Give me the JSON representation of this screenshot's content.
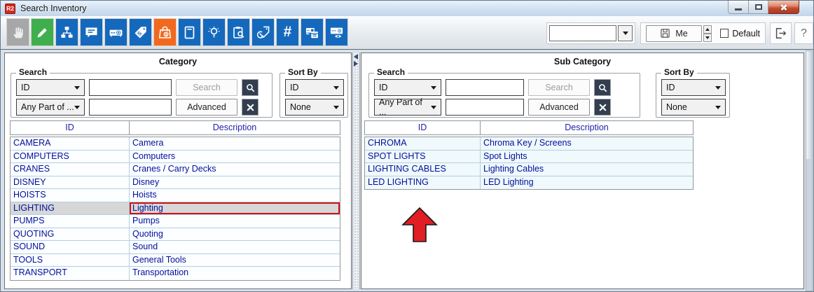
{
  "window": {
    "badge": "R2",
    "title": "Search Inventory",
    "control_icons": [
      "minimize-icon",
      "restore-icon",
      "close-icon"
    ]
  },
  "toolbar": {
    "buttons": [
      {
        "icon": "hand-pointer-icon",
        "state": "disabled",
        "color": "#a7a7a7"
      },
      {
        "icon": "edit-pencil-icon",
        "state": "normal",
        "color": "#3faf4d"
      },
      {
        "icon": "sitemap-icon",
        "state": "normal",
        "color": "#1569bd"
      },
      {
        "icon": "comment-icon",
        "state": "normal",
        "color": "#1569bd"
      },
      {
        "icon": "projector-icon",
        "state": "normal",
        "color": "#1569bd"
      },
      {
        "icon": "price-tag-icon",
        "state": "normal",
        "color": "#1569bd"
      },
      {
        "icon": "shopping-bag-icon",
        "state": "active",
        "color": "#f2691e"
      },
      {
        "icon": "book-icon",
        "state": "normal",
        "color": "#1569bd"
      },
      {
        "icon": "light-bulb-icon",
        "state": "normal",
        "color": "#1569bd"
      },
      {
        "icon": "clipboard-search-icon",
        "state": "normal",
        "color": "#1569bd"
      },
      {
        "icon": "tag-sync-icon",
        "state": "normal",
        "color": "#1569bd"
      },
      {
        "icon": "hash-icon",
        "state": "normal",
        "color": "#1569bd"
      },
      {
        "icon": "projector-calendar-icon",
        "state": "normal",
        "color": "#1569bd"
      },
      {
        "icon": "projector-eye-icon",
        "state": "normal",
        "color": "#1569bd"
      }
    ],
    "hash_glyph": "#"
  },
  "quick_access": {
    "view_dropdown_value": "",
    "save_button_label": "Me",
    "save_icon": "floppy-disk-icon",
    "default_checkbox_label": "Default",
    "default_checked": false,
    "exit_icon": "exit-icon",
    "help_label": "?"
  },
  "panels": [
    {
      "title": "Category",
      "search": {
        "legend": "Search",
        "field_dropdown": "ID",
        "match_dropdown": "Any Part of ...",
        "keyword_value": "",
        "keyword2_value": "",
        "search_button": "Search",
        "advanced_button": "Advanced",
        "search_icon": "magnifier-icon",
        "clear_icon": "x-icon"
      },
      "sort": {
        "legend": "Sort By",
        "primary": "ID",
        "secondary": "None"
      },
      "table": {
        "columns": [
          "ID",
          "Description"
        ],
        "rows": [
          [
            "CAMERA",
            "Camera"
          ],
          [
            "COMPUTERS",
            "Computers"
          ],
          [
            "CRANES",
            "Cranes / Carry Decks"
          ],
          [
            "DISNEY",
            "Disney"
          ],
          [
            "HOISTS",
            "Hoists"
          ],
          [
            "LIGHTING",
            "Lighting"
          ],
          [
            "PUMPS",
            "Pumps"
          ],
          [
            "QUOTING",
            "Quoting"
          ],
          [
            "SOUND",
            "Sound"
          ],
          [
            "TOOLS",
            "General Tools"
          ],
          [
            "TRANSPORT",
            "Transportation"
          ]
        ],
        "selected_index": 5
      }
    },
    {
      "title": "Sub Category",
      "search": {
        "legend": "Search",
        "field_dropdown": "ID",
        "match_dropdown": "Any Part of ...",
        "keyword_value": "",
        "keyword2_value": "",
        "search_button": "Search",
        "advanced_button": "Advanced",
        "search_icon": "magnifier-icon",
        "clear_icon": "x-icon"
      },
      "sort": {
        "legend": "Sort By",
        "primary": "ID",
        "secondary": "None"
      },
      "table": {
        "columns": [
          "ID",
          "Description"
        ],
        "rows": [
          [
            "CHROMA",
            "Chroma Key / Screens"
          ],
          [
            "SPOT LIGHTS",
            "Spot Lights"
          ],
          [
            "LIGHTING CABLES",
            "Lighting Cables"
          ],
          [
            "LED LIGHTING",
            "LED Lighting"
          ]
        ],
        "selected_index": -1
      }
    }
  ],
  "annotations": {
    "red_arrow": "up-arrow-annotation"
  },
  "colors": {
    "accent_blue": "#1569bd",
    "accent_orange": "#f2691e",
    "accent_green": "#3faf4d",
    "selection_red": "#d01317",
    "table_text": "#000f9d"
  }
}
